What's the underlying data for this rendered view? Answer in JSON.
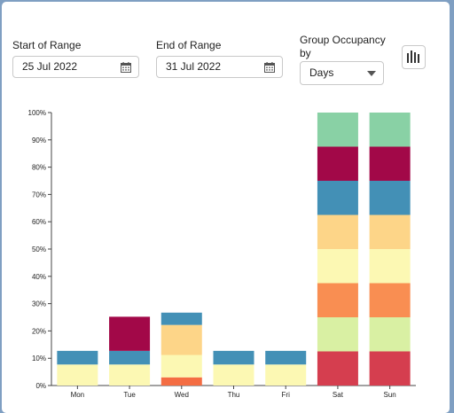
{
  "controls": {
    "start_label": "Start of Range",
    "start_value": "25 Jul 2022",
    "end_label": "End of Range",
    "end_value": "31 Jul 2022",
    "occupancy_label_line1": "Group Occupancy",
    "occupancy_label_line2": "by",
    "occupancy_value": "Days"
  },
  "icons": {
    "start_calendar": "calendar-icon",
    "end_calendar": "calendar-icon",
    "occupancy_dropdown": "chevron-down-icon",
    "chart_type": "bar-chart-icon"
  },
  "chart_data": {
    "type": "bar",
    "stacked": true,
    "categories": [
      "Mon",
      "Tue",
      "Wed",
      "Thu",
      "Fri",
      "Sat",
      "Sun"
    ],
    "ylim": [
      0,
      100
    ],
    "y_ticks": [
      "0%",
      "10%",
      "20%",
      "30%",
      "40%",
      "50%",
      "60%",
      "70%",
      "80%",
      "90%",
      "100%"
    ],
    "grid": false,
    "legend": "none",
    "series": [
      {
        "color": "#d53e4f",
        "values": [
          0,
          0,
          0,
          0,
          0,
          12.5,
          12.5
        ]
      },
      {
        "color": "#f46d43",
        "values": [
          0,
          0,
          3,
          0,
          0,
          0,
          0
        ]
      },
      {
        "color": "#d9f0a3",
        "values": [
          0,
          0,
          0,
          0,
          0,
          12.5,
          12.5
        ]
      },
      {
        "color": "#f98e52",
        "values": [
          0,
          0,
          0,
          0,
          0,
          12.5,
          12.5
        ]
      },
      {
        "color": "#fcf8b3",
        "values": [
          7.7,
          7.7,
          8.2,
          7.7,
          7.7,
          12.5,
          12.5
        ]
      },
      {
        "color": "#fdd588",
        "values": [
          0,
          0,
          11,
          0,
          0,
          12.5,
          12.5
        ]
      },
      {
        "color": "#4390b6",
        "values": [
          5,
          5,
          4.5,
          5,
          5,
          12.5,
          12.5
        ]
      },
      {
        "color": "#a20848",
        "values": [
          0,
          12.5,
          0,
          0,
          0,
          12.5,
          12.5
        ]
      },
      {
        "color": "#89d1a5",
        "values": [
          0,
          0,
          0,
          0,
          0,
          12.5,
          12.5
        ]
      }
    ]
  }
}
